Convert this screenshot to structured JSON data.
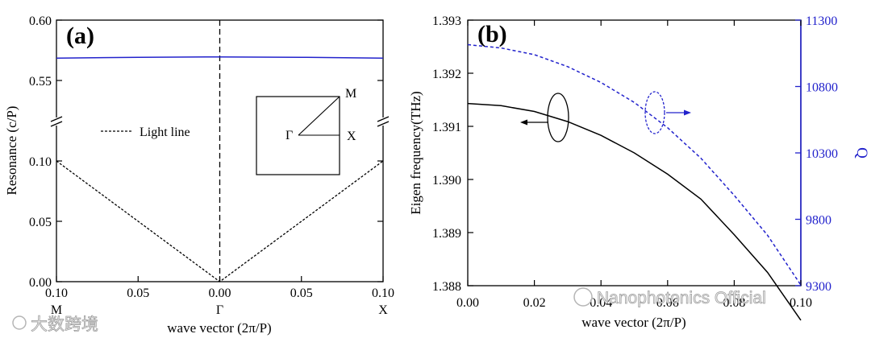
{
  "colors": {
    "black": "#000000",
    "blue": "#2222cc"
  },
  "chart_data": [
    {
      "type": "line",
      "panel_label": "(a)",
      "xlabel": "wave vector (2π/P)",
      "ylabel": "Resonance (c/P)",
      "x_ticks": [
        "0.10",
        "0.05",
        "0.00",
        "0.05",
        "0.10"
      ],
      "x_points": [
        "M",
        "Γ",
        "X"
      ],
      "y_ticks_lower": [
        "0.00",
        "0.05",
        "0.10"
      ],
      "y_ticks_upper": [
        "0.55",
        "0.60"
      ],
      "ylim_lower": [
        0,
        0.12
      ],
      "ylim_upper": [
        0.52,
        0.6
      ],
      "axis_break": true,
      "x": [
        -0.1,
        -0.05,
        0,
        0.05,
        0.1
      ],
      "series": [
        {
          "name": "Light line",
          "style": "dashed",
          "color": "#000000",
          "values": [
            0.1,
            0.05,
            0.0,
            0.05,
            0.1
          ]
        },
        {
          "style": "solid",
          "color": "#2222cc",
          "values": [
            0.5685,
            0.5692,
            0.5695,
            0.5692,
            0.5685
          ]
        }
      ],
      "inset": {
        "labels": [
          "M",
          "Γ",
          "X"
        ]
      }
    },
    {
      "type": "line",
      "panel_label": "(b)",
      "xlabel": "wave vector (2π/P)",
      "ylabel_left": "Eigen frequency(THz)",
      "ylabel_right": "Q",
      "x_ticks": [
        "0.00",
        "0.02",
        "0.04",
        "0.06",
        "0.08",
        "0.10"
      ],
      "y_ticks_left": [
        "1.388",
        "1.389",
        "1.390",
        "1.391",
        "1.392",
        "1.393"
      ],
      "y_ticks_right": [
        "9300",
        "9800",
        "10300",
        "10800",
        "11300"
      ],
      "xlim": [
        0,
        0.1
      ],
      "ylim_left": [
        1.388,
        1.393
      ],
      "ylim_right": [
        9300,
        11300
      ],
      "x": [
        0,
        0.01,
        0.02,
        0.03,
        0.04,
        0.05,
        0.06,
        0.07,
        0.08,
        0.09,
        0.1
      ],
      "series": [
        {
          "axis": "left",
          "style": "solid",
          "color": "#000000",
          "values": [
            1.39143,
            1.39139,
            1.39128,
            1.39109,
            1.39083,
            1.3905,
            1.3901,
            1.38963,
            1.38896,
            1.38825,
            1.38735
          ]
        },
        {
          "axis": "right",
          "style": "dashed",
          "color": "#2222cc",
          "values": [
            11115,
            11090,
            11040,
            10950,
            10830,
            10680,
            10490,
            10260,
            9980,
            9680,
            9305
          ]
        }
      ]
    }
  ],
  "watermarks": {
    "left": "大数跨境",
    "right": "Nanophotonics Official"
  }
}
